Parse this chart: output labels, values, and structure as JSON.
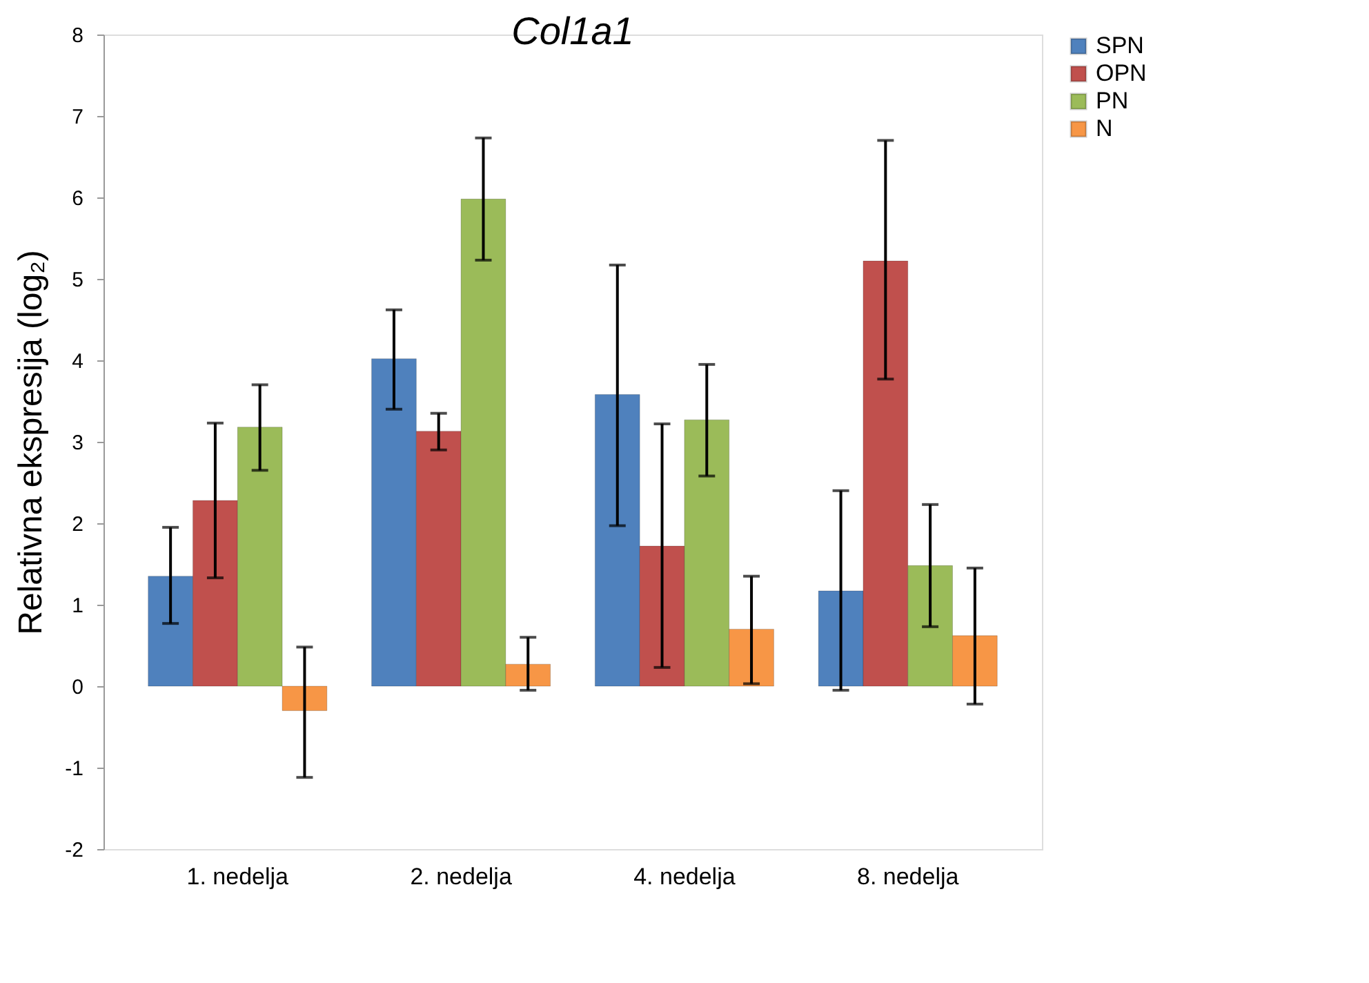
{
  "chart_data": {
    "type": "bar",
    "title": "Col1a1",
    "ylabel": "Relativna ekspresija (log₂)",
    "categories": [
      "1. nedelja",
      "2. nedelja",
      "4. nedelja",
      "8. nedelja"
    ],
    "series": [
      {
        "name": "SPN",
        "color": "#4f81bd",
        "values": [
          1.35,
          4.02,
          3.58,
          1.17
        ],
        "errors": [
          [
            0.77,
            1.95
          ],
          [
            3.4,
            4.62
          ],
          [
            1.97,
            5.17
          ],
          [
            -0.05,
            2.4
          ]
        ]
      },
      {
        "name": "OPN",
        "color": "#c0504d",
        "values": [
          2.28,
          3.13,
          1.72,
          5.22
        ],
        "errors": [
          [
            1.33,
            3.23
          ],
          [
            2.9,
            3.35
          ],
          [
            0.23,
            3.22
          ],
          [
            3.77,
            6.7
          ]
        ]
      },
      {
        "name": "PN",
        "color": "#9bbb59",
        "values": [
          3.18,
          5.98,
          3.27,
          1.48
        ],
        "errors": [
          [
            2.65,
            3.7
          ],
          [
            5.23,
            6.73
          ],
          [
            2.58,
            3.95
          ],
          [
            0.73,
            2.23
          ]
        ]
      },
      {
        "name": "N",
        "color": "#f79646",
        "values": [
          -0.3,
          0.27,
          0.7,
          0.62
        ],
        "errors": [
          [
            -1.12,
            0.48
          ],
          [
            -0.05,
            0.6
          ],
          [
            0.03,
            1.35
          ],
          [
            -0.22,
            1.45
          ]
        ]
      }
    ],
    "ylim": [
      -2,
      8
    ],
    "yticks": [
      -2,
      -1,
      0,
      1,
      2,
      3,
      4,
      5,
      6,
      7,
      8
    ],
    "grid": false,
    "legend": "right"
  }
}
